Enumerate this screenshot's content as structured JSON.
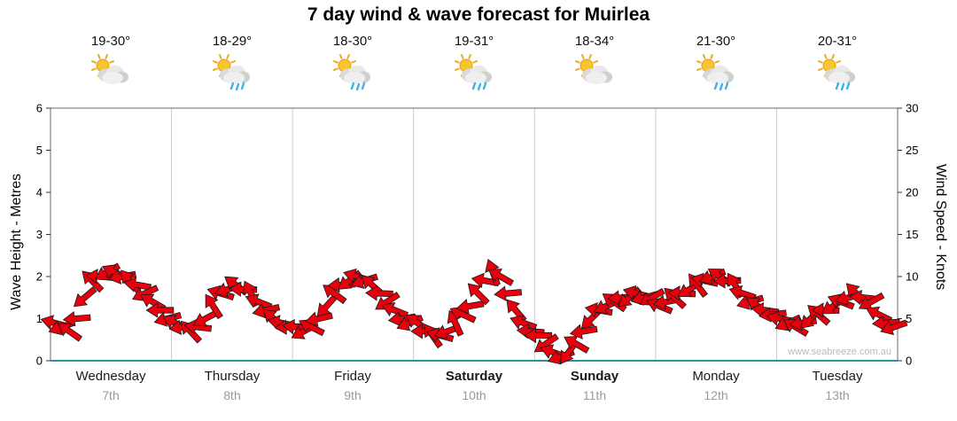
{
  "title": "7 day wind & wave forecast for Muirlea",
  "watermark": "www.seabreeze.com.au",
  "axes": {
    "left_label": "Wave Height - Metres",
    "right_label": "Wind Speed - Knots",
    "left_ticks": [
      0,
      1,
      2,
      3,
      4,
      5,
      6
    ],
    "right_ticks": [
      0,
      5,
      10,
      15,
      20,
      25,
      30
    ]
  },
  "forecast": {
    "days": [
      {
        "name": "Wednesday",
        "date": "7th",
        "temp": "19-30°",
        "icon": "sun-cloud-icon",
        "weekend": false
      },
      {
        "name": "Thursday",
        "date": "8th",
        "temp": "18-29°",
        "icon": "sun-cloud-rain-icon",
        "weekend": false
      },
      {
        "name": "Friday",
        "date": "9th",
        "temp": "18-30°",
        "icon": "sun-cloud-rain-icon",
        "weekend": false
      },
      {
        "name": "Saturday",
        "date": "10th",
        "temp": "19-31°",
        "icon": "sun-cloud-rain-icon",
        "weekend": true
      },
      {
        "name": "Sunday",
        "date": "11th",
        "temp": "18-34°",
        "icon": "sun-cloud-icon",
        "weekend": true
      },
      {
        "name": "Monday",
        "date": "12th",
        "temp": "21-30°",
        "icon": "sun-cloud-rain-icon",
        "weekend": false
      },
      {
        "name": "Tuesday",
        "date": "13th",
        "temp": "20-31°",
        "icon": "sun-cloud-rain-icon",
        "weekend": false
      }
    ]
  },
  "chart_data": {
    "type": "scatter",
    "marker": "wind-arrow",
    "title": "7 day wind & wave forecast for Muirlea",
    "x_categories": [
      "Wednesday 7th",
      "Thursday 8th",
      "Friday 9th",
      "Saturday 10th",
      "Sunday 11th",
      "Monday 12th",
      "Tuesday 13th"
    ],
    "points_per_day": 16,
    "days": 7,
    "ylim_left_metres": [
      0,
      6
    ],
    "ylim_right_knots": [
      0,
      30
    ],
    "knots_per_metre": 5,
    "wind_knots": [
      4.5,
      4,
      3.5,
      5,
      7.5,
      9.5,
      10,
      10.5,
      10.5,
      10,
      9.5,
      9,
      8,
      7,
      6,
      5,
      4.5,
      4,
      3.5,
      4,
      5,
      6.5,
      8,
      8.5,
      9,
      8.5,
      8,
      7,
      6,
      5,
      4.5,
      4,
      4,
      3.5,
      4,
      5,
      6.5,
      8,
      9,
      9.5,
      10,
      9.5,
      9,
      8,
      7,
      6,
      5,
      4.5,
      4.5,
      3.5,
      3,
      3,
      3.5,
      4.5,
      5.5,
      6.5,
      8,
      9.5,
      10.5,
      10,
      8,
      6,
      4.5,
      3.5,
      3,
      2,
      1,
      0.5,
      1,
      2,
      3.5,
      5,
      6,
      6.5,
      7,
      7.5,
      7.5,
      8,
      7.5,
      7.5,
      6.5,
      7,
      7.5,
      8,
      8.5,
      9,
      9.5,
      10,
      10,
      9.5,
      9,
      8,
      7,
      6.5,
      6,
      5.5,
      5,
      4.5,
      4,
      4.5,
      5,
      5.5,
      6,
      6.5,
      7,
      7.5,
      8,
      7.5,
      7,
      5.5,
      4.5,
      4
    ],
    "arrow_rot_deg": [
      195,
      160,
      215,
      175,
      140,
      225,
      185,
      150,
      205,
      170,
      230,
      190,
      155,
      210,
      180,
      165,
      207,
      172,
      227,
      187,
      152,
      237,
      197,
      162,
      217,
      182,
      242,
      202,
      167,
      222,
      192,
      177,
      187,
      152,
      207,
      167,
      132,
      217,
      177,
      142,
      197,
      162,
      222,
      182,
      147,
      202,
      172,
      157,
      215,
      180,
      235,
      195,
      160,
      245,
      205,
      170,
      225,
      190,
      250,
      210,
      175,
      230,
      200,
      185,
      180,
      145,
      200,
      160,
      125,
      210,
      170,
      135,
      190,
      155,
      215,
      175,
      140,
      195,
      165,
      150,
      203,
      168,
      223,
      183,
      148,
      233,
      193,
      158,
      213,
      178,
      238,
      198,
      163,
      218,
      188,
      173,
      191,
      156,
      211,
      171,
      136,
      221,
      181,
      146,
      201,
      166,
      226,
      186,
      151,
      206,
      176,
      161
    ],
    "colors": {
      "arrow": "#e8000d",
      "arrow_outline": "#1a1a1a",
      "grid": "#c9cdd2",
      "frame": "#6b6b6b",
      "baseline": "#2f8fa3",
      "tick_text": "#000000",
      "date_text": "#9a9a9a"
    },
    "legend": "none",
    "grid": "vertical day separators only"
  }
}
